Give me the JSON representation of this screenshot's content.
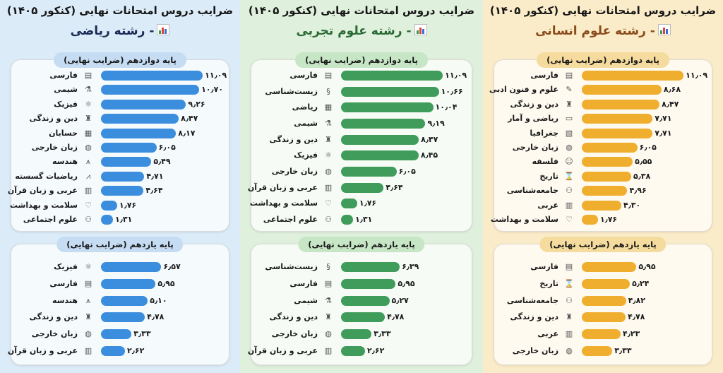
{
  "panels": [
    {
      "title": "ضرایب دروس امتحانات نهایی (کنکور ۱۴۰۵)",
      "subtitle": "- رشته ریاضی",
      "colors": {
        "background": "#dcebf8",
        "bar": "#3b8ede",
        "pill": "#c5dcf3",
        "subtitle": "#1b2a55"
      }
    },
    {
      "title": "ضرایب دروس امتحانات نهایی (کنکور ۱۴۰۵)",
      "subtitle": "- رشته علوم تجربی",
      "colors": {
        "background": "#dff0dc",
        "bar": "#3f9c5b",
        "pill": "#c7e6c6",
        "subtitle": "#2a6a35"
      }
    },
    {
      "title": "ضرایب دروس امتحانات نهایی (کنکور ۱۴۰۵)",
      "subtitle": "- رشته علوم انسانی",
      "colors": {
        "background": "#fbecc9",
        "bar": "#f0ae2e",
        "pill": "#f5dc9e",
        "subtitle": "#8a4a1a"
      }
    }
  ],
  "chart_data": [
    {
      "type": "bar",
      "orientation": "horizontal",
      "panel": 0,
      "title": "پایه دوازدهم (ضرایب نهایی)",
      "categories": [
        "فارسی",
        "شیمی",
        "فیزیک",
        "دین و زندگی",
        "حسابان",
        "زبان خارجی",
        "هندسه",
        "ریاضیات گسسته",
        "عربی و زبان قرآن",
        "سلامت و بهداشت",
        "علوم اجتماعی"
      ],
      "icons": [
        "book-icon",
        "flask-icon",
        "atom-icon",
        "mosque-icon",
        "calculator-icon",
        "globe-icon",
        "compass-icon",
        "line-chart-icon",
        "scroll-icon",
        "heart-icon",
        "people-icon"
      ],
      "values": [
        11.09,
        10.7,
        9.26,
        8.47,
        8.17,
        6.05,
        5.49,
        4.71,
        4.64,
        1.76,
        1.31
      ]
    },
    {
      "type": "bar",
      "orientation": "horizontal",
      "panel": 0,
      "title": "پایه یازدهم (ضرایب نهایی)",
      "categories": [
        "فیزیک",
        "فارسی",
        "هندسه",
        "دین و زندگی",
        "زبان خارجی",
        "عربی و زبان قرآن"
      ],
      "icons": [
        "atom-icon",
        "book-icon",
        "compass-icon",
        "mosque-icon",
        "globe-icon",
        "scroll-icon"
      ],
      "values": [
        6.57,
        5.95,
        5.1,
        4.78,
        3.33,
        2.62
      ]
    },
    {
      "type": "bar",
      "orientation": "horizontal",
      "panel": 1,
      "title": "پایه دوازدهم (ضرایب نهایی)",
      "categories": [
        "فارسی",
        "زیست‌شناسی",
        "ریاضی",
        "شیمی",
        "دین و زندگی",
        "فیزیک",
        "زبان خارجی",
        "عربی و زبان قرآن",
        "سلامت و بهداشت",
        "علوم اجتماعی"
      ],
      "icons": [
        "book-icon",
        "dna-icon",
        "calculator-icon",
        "flask-icon",
        "mosque-icon",
        "atom-icon",
        "globe-icon",
        "scroll-icon",
        "heart-icon",
        "people-icon"
      ],
      "values": [
        11.09,
        10.66,
        10.04,
        9.19,
        8.47,
        8.45,
        6.05,
        4.64,
        1.76,
        1.31
      ]
    },
    {
      "type": "bar",
      "orientation": "horizontal",
      "panel": 1,
      "title": "پایه یازدهم (ضرایب نهایی)",
      "categories": [
        "زیست‌شناسی",
        "فارسی",
        "شیمی",
        "دین و زندگی",
        "زبان خارجی",
        "عربی و زبان قرآن"
      ],
      "icons": [
        "dna-icon",
        "book-icon",
        "flask-icon",
        "mosque-icon",
        "globe-icon",
        "scroll-icon"
      ],
      "values": [
        6.39,
        5.95,
        5.27,
        4.78,
        3.33,
        2.62
      ]
    },
    {
      "type": "bar",
      "orientation": "horizontal",
      "panel": 2,
      "title": "پایه دوازدهم (ضرایب نهایی)",
      "categories": [
        "فارسی",
        "علوم و فنون ادبی",
        "دین و زندگی",
        "ریاضی و آمار",
        "جغرافیا",
        "زبان خارجی",
        "فلسفه",
        "تاریخ",
        "جامعه‌شناسی",
        "عربی",
        "سلامت و بهداشت"
      ],
      "icons": [
        "book-icon",
        "pen-icon",
        "mosque-icon",
        "presentation-icon",
        "map-icon",
        "globe-icon",
        "head-icon",
        "hourglass-icon",
        "people-icon",
        "scroll-icon",
        "heart-icon"
      ],
      "values": [
        11.09,
        8.68,
        8.47,
        7.71,
        7.71,
        6.05,
        5.55,
        5.38,
        4.96,
        4.3,
        1.76
      ]
    },
    {
      "type": "bar",
      "orientation": "horizontal",
      "panel": 2,
      "title": "پایه یازدهم (ضرایب نهایی)",
      "categories": [
        "فارسی",
        "تاریخ",
        "جامعه‌شناسی",
        "دین و زندگی",
        "عربی",
        "زبان خارجی"
      ],
      "icons": [
        "book-icon",
        "hourglass-icon",
        "people-icon",
        "mosque-icon",
        "scroll-icon",
        "globe-icon"
      ],
      "values": [
        5.95,
        5.24,
        4.82,
        4.78,
        4.23,
        3.33
      ]
    }
  ]
}
